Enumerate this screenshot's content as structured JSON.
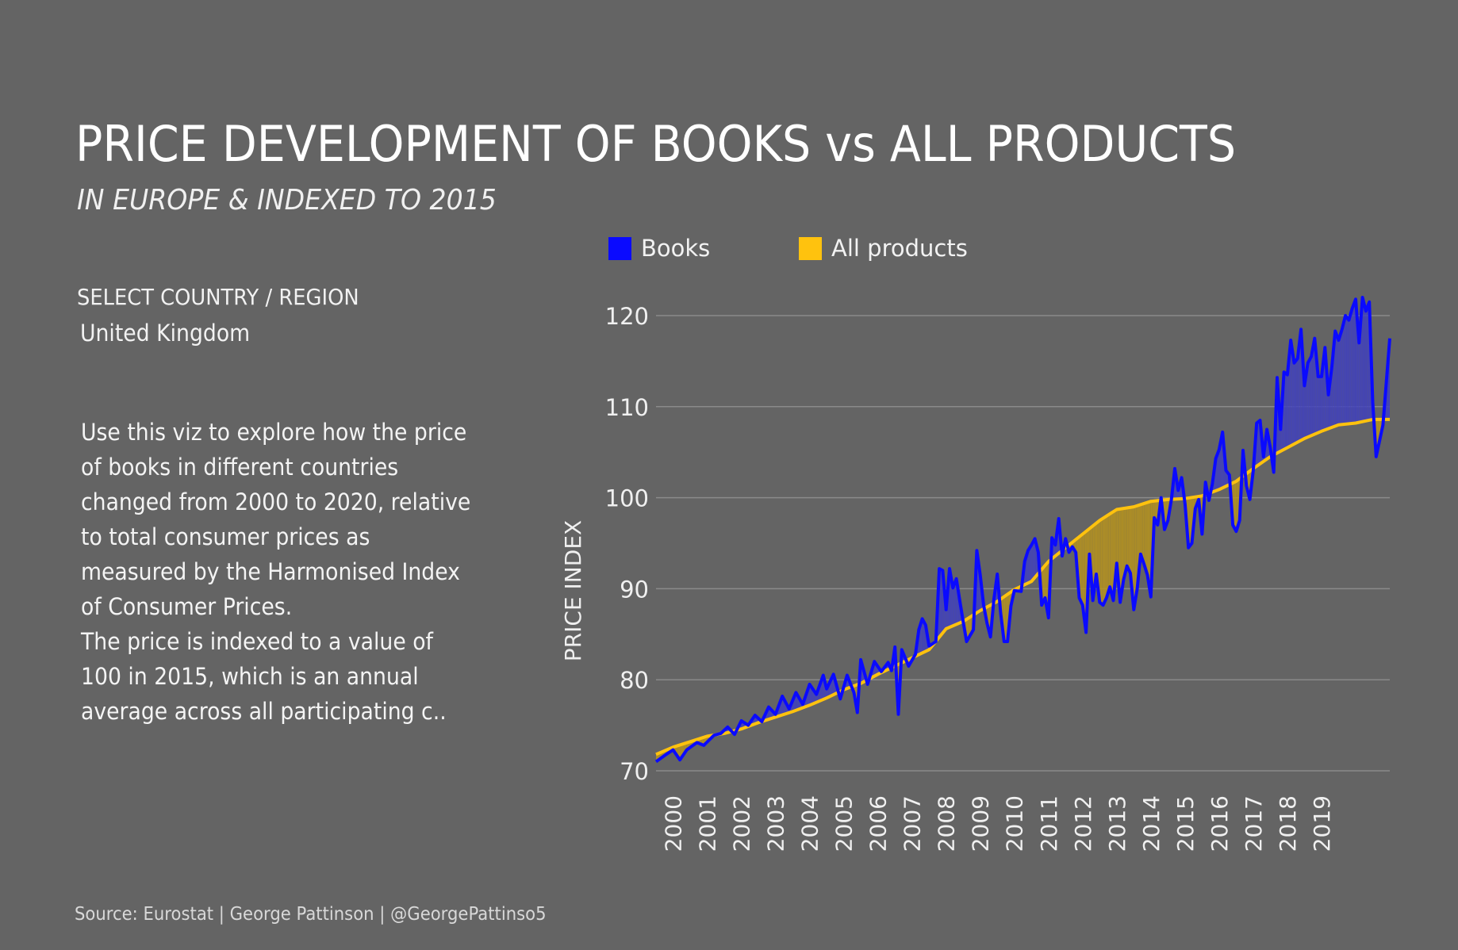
{
  "header": {
    "title": "PRICE DEVELOPMENT OF BOOKS vs ALL PRODUCTS",
    "subtitle": "IN EUROPE & INDEXED TO 2015"
  },
  "filter": {
    "label": "SELECT COUNTRY / REGION",
    "value": "United Kingdom"
  },
  "description": {
    "paragraph1": "Use this viz to explore how the price of books in different countries  changed from 2000 to 2020, relative to total consumer prices as measured by the Harmonised Index of Consumer Prices.",
    "paragraph2": "The price is indexed to a value of 100 in 2015, which is an annual average across all participating c.."
  },
  "source": "Source: Eurostat | George Pattinson | @GeorgePattinso5",
  "colors": {
    "background": "#646464",
    "books": "#0a0aff",
    "all_products": "#ffc20e",
    "books_fill": "#3f3fc0",
    "all_products_fill": "#b8941c",
    "gridline": "#8a8a8a"
  },
  "chart_data": {
    "type": "line",
    "title": "PRICE DEVELOPMENT OF BOOKS vs ALL PRODUCTS",
    "subtitle": "IN EUROPE & INDEXED TO 2015",
    "xlabel": "",
    "ylabel": "PRICE INDEX",
    "ylim": [
      70,
      122
    ],
    "yticks": [
      70,
      80,
      90,
      100,
      110,
      120
    ],
    "xticks": [
      "2000",
      "2001",
      "2002",
      "2003",
      "2004",
      "2005",
      "2006",
      "2007",
      "2008",
      "2009",
      "2010",
      "2011",
      "2012",
      "2013",
      "2014",
      "2015",
      "2016",
      "2017",
      "2018",
      "2019"
    ],
    "grid": true,
    "legend_position": "top",
    "fill_between": true,
    "series": [
      {
        "name": "Books",
        "color": "#0a0aff",
        "points": [
          [
            2000.0,
            71.0
          ],
          [
            2000.3,
            71.8
          ],
          [
            2000.5,
            72.3
          ],
          [
            2000.7,
            71.2
          ],
          [
            2000.9,
            72.3
          ],
          [
            2001.2,
            73.1
          ],
          [
            2001.4,
            72.8
          ],
          [
            2001.7,
            73.9
          ],
          [
            2001.9,
            74.1
          ],
          [
            2002.1,
            74.8
          ],
          [
            2002.3,
            74.0
          ],
          [
            2002.5,
            75.5
          ],
          [
            2002.7,
            75.0
          ],
          [
            2002.9,
            76.1
          ],
          [
            2003.1,
            75.4
          ],
          [
            2003.3,
            77.0
          ],
          [
            2003.5,
            76.2
          ],
          [
            2003.7,
            78.2
          ],
          [
            2003.9,
            76.8
          ],
          [
            2004.1,
            78.6
          ],
          [
            2004.3,
            77.3
          ],
          [
            2004.5,
            79.5
          ],
          [
            2004.7,
            78.4
          ],
          [
            2004.9,
            80.5
          ],
          [
            2005.0,
            79.0
          ],
          [
            2005.2,
            80.6
          ],
          [
            2005.4,
            77.9
          ],
          [
            2005.6,
            80.5
          ],
          [
            2005.8,
            78.6
          ],
          [
            2005.9,
            76.4
          ],
          [
            2006.0,
            82.2
          ],
          [
            2006.2,
            79.5
          ],
          [
            2006.4,
            82.0
          ],
          [
            2006.6,
            80.9
          ],
          [
            2006.8,
            81.9
          ],
          [
            2006.9,
            81.0
          ],
          [
            2007.0,
            83.6
          ],
          [
            2007.1,
            76.2
          ],
          [
            2007.2,
            83.3
          ],
          [
            2007.4,
            81.5
          ],
          [
            2007.6,
            82.8
          ],
          [
            2007.7,
            85.5
          ],
          [
            2007.8,
            86.7
          ],
          [
            2007.9,
            86.0
          ],
          [
            2008.0,
            83.7
          ],
          [
            2008.2,
            84.2
          ],
          [
            2008.3,
            92.2
          ],
          [
            2008.4,
            92.0
          ],
          [
            2008.5,
            87.7
          ],
          [
            2008.6,
            92.2
          ],
          [
            2008.7,
            90.1
          ],
          [
            2008.8,
            91.1
          ],
          [
            2008.9,
            88.7
          ],
          [
            2009.0,
            86.4
          ],
          [
            2009.1,
            84.2
          ],
          [
            2009.3,
            85.5
          ],
          [
            2009.4,
            94.2
          ],
          [
            2009.5,
            91.5
          ],
          [
            2009.6,
            88.2
          ],
          [
            2009.7,
            86.2
          ],
          [
            2009.8,
            84.7
          ],
          [
            2009.9,
            88.8
          ],
          [
            2010.0,
            91.6
          ],
          [
            2010.1,
            87.3
          ],
          [
            2010.2,
            84.2
          ],
          [
            2010.3,
            84.2
          ],
          [
            2010.4,
            88.1
          ],
          [
            2010.5,
            89.8
          ],
          [
            2010.7,
            89.7
          ],
          [
            2010.8,
            93.0
          ],
          [
            2010.9,
            94.2
          ],
          [
            2011.0,
            94.8
          ],
          [
            2011.1,
            95.5
          ],
          [
            2011.2,
            94.0
          ],
          [
            2011.3,
            88.2
          ],
          [
            2011.4,
            89.0
          ],
          [
            2011.5,
            86.8
          ],
          [
            2011.6,
            95.6
          ],
          [
            2011.7,
            94.8
          ],
          [
            2011.8,
            97.7
          ],
          [
            2011.9,
            93.6
          ],
          [
            2012.0,
            95.5
          ],
          [
            2012.1,
            94.0
          ],
          [
            2012.2,
            94.6
          ],
          [
            2012.3,
            94.0
          ],
          [
            2012.4,
            89.0
          ],
          [
            2012.5,
            88.2
          ],
          [
            2012.6,
            85.2
          ],
          [
            2012.7,
            93.8
          ],
          [
            2012.8,
            88.7
          ],
          [
            2012.9,
            91.6
          ],
          [
            2013.0,
            88.5
          ],
          [
            2013.1,
            88.2
          ],
          [
            2013.2,
            89.0
          ],
          [
            2013.3,
            90.2
          ],
          [
            2013.4,
            88.7
          ],
          [
            2013.5,
            92.8
          ],
          [
            2013.6,
            88.5
          ],
          [
            2013.7,
            91.0
          ],
          [
            2013.8,
            92.5
          ],
          [
            2013.9,
            91.7
          ],
          [
            2014.0,
            87.7
          ],
          [
            2014.1,
            90.0
          ],
          [
            2014.2,
            93.8
          ],
          [
            2014.3,
            92.7
          ],
          [
            2014.4,
            91.5
          ],
          [
            2014.5,
            89.1
          ],
          [
            2014.6,
            97.8
          ],
          [
            2014.7,
            97.0
          ],
          [
            2014.8,
            100.0
          ],
          [
            2014.9,
            96.5
          ],
          [
            2015.0,
            97.5
          ],
          [
            2015.1,
            99.8
          ],
          [
            2015.2,
            103.2
          ],
          [
            2015.3,
            100.8
          ],
          [
            2015.4,
            102.2
          ],
          [
            2015.5,
            99.3
          ],
          [
            2015.6,
            94.5
          ],
          [
            2015.7,
            95.0
          ],
          [
            2015.8,
            98.8
          ],
          [
            2015.9,
            99.8
          ],
          [
            2016.0,
            96.0
          ],
          [
            2016.1,
            101.7
          ],
          [
            2016.2,
            99.7
          ],
          [
            2016.3,
            101.5
          ],
          [
            2016.4,
            104.3
          ],
          [
            2016.5,
            105.3
          ],
          [
            2016.6,
            107.2
          ],
          [
            2016.7,
            103.0
          ],
          [
            2016.8,
            102.5
          ],
          [
            2016.9,
            97.0
          ],
          [
            2017.0,
            96.3
          ],
          [
            2017.1,
            97.5
          ],
          [
            2017.2,
            105.2
          ],
          [
            2017.3,
            101.3
          ],
          [
            2017.4,
            99.8
          ],
          [
            2017.5,
            103.0
          ],
          [
            2017.6,
            108.2
          ],
          [
            2017.7,
            108.5
          ],
          [
            2017.8,
            104.5
          ],
          [
            2017.9,
            107.5
          ],
          [
            2018.0,
            105.5
          ],
          [
            2018.1,
            102.8
          ],
          [
            2018.2,
            113.2
          ],
          [
            2018.3,
            107.5
          ],
          [
            2018.4,
            113.8
          ],
          [
            2018.5,
            113.5
          ],
          [
            2018.6,
            117.3
          ],
          [
            2018.7,
            114.8
          ],
          [
            2018.8,
            115.3
          ],
          [
            2018.9,
            118.5
          ],
          [
            2019.0,
            112.3
          ],
          [
            2019.1,
            114.8
          ],
          [
            2019.2,
            115.5
          ],
          [
            2019.3,
            117.5
          ],
          [
            2019.4,
            113.3
          ],
          [
            2019.5,
            113.3
          ],
          [
            2019.6,
            116.5
          ],
          [
            2019.7,
            111.3
          ],
          [
            2019.8,
            114.3
          ],
          [
            2019.9,
            118.3
          ],
          [
            2020.0,
            117.3
          ],
          [
            2020.1,
            118.5
          ],
          [
            2020.2,
            120.0
          ],
          [
            2020.3,
            119.5
          ],
          [
            2020.4,
            120.8
          ],
          [
            2020.5,
            121.8
          ],
          [
            2020.6,
            117.0
          ],
          [
            2020.7,
            122.0
          ],
          [
            2020.8,
            120.5
          ],
          [
            2020.9,
            121.5
          ],
          [
            2021.0,
            110.5
          ],
          [
            2021.1,
            104.5
          ],
          [
            2021.3,
            108.0
          ],
          [
            2021.5,
            117.5
          ]
        ]
      },
      {
        "name": "All products",
        "color": "#ffc20e",
        "points": [
          [
            2000.0,
            71.8
          ],
          [
            2000.5,
            72.6
          ],
          [
            2001.0,
            73.2
          ],
          [
            2001.5,
            73.8
          ],
          [
            2002.0,
            74.1
          ],
          [
            2002.5,
            74.6
          ],
          [
            2003.0,
            75.3
          ],
          [
            2003.5,
            75.9
          ],
          [
            2004.0,
            76.5
          ],
          [
            2004.5,
            77.2
          ],
          [
            2005.0,
            78.0
          ],
          [
            2005.5,
            78.9
          ],
          [
            2006.0,
            79.6
          ],
          [
            2006.5,
            80.6
          ],
          [
            2007.0,
            81.5
          ],
          [
            2007.5,
            82.4
          ],
          [
            2008.0,
            83.3
          ],
          [
            2008.5,
            85.6
          ],
          [
            2009.0,
            86.4
          ],
          [
            2009.5,
            87.6
          ],
          [
            2010.0,
            88.6
          ],
          [
            2010.5,
            89.9
          ],
          [
            2011.0,
            90.8
          ],
          [
            2011.5,
            93.0
          ],
          [
            2012.0,
            94.5
          ],
          [
            2012.5,
            96.0
          ],
          [
            2013.0,
            97.5
          ],
          [
            2013.5,
            98.7
          ],
          [
            2014.0,
            99.0
          ],
          [
            2014.5,
            99.6
          ],
          [
            2015.0,
            99.8
          ],
          [
            2015.5,
            99.9
          ],
          [
            2016.0,
            100.2
          ],
          [
            2016.5,
            100.9
          ],
          [
            2017.0,
            101.8
          ],
          [
            2017.5,
            103.2
          ],
          [
            2018.0,
            104.5
          ],
          [
            2018.5,
            105.5
          ],
          [
            2019.0,
            106.5
          ],
          [
            2019.5,
            107.3
          ],
          [
            2020.0,
            108.0
          ],
          [
            2020.5,
            108.2
          ],
          [
            2021.0,
            108.6
          ],
          [
            2021.5,
            108.6
          ]
        ]
      }
    ]
  }
}
